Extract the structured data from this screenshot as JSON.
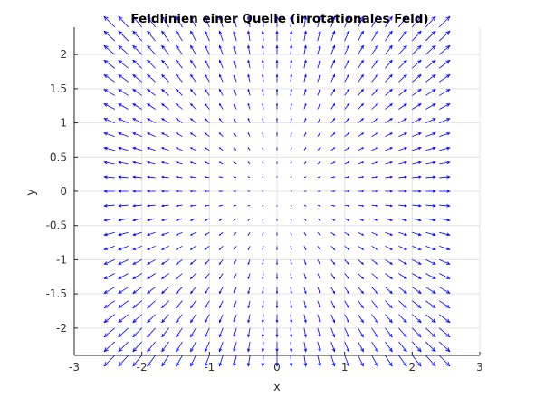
{
  "chart_data": {
    "type": "quiver",
    "title": "Feldlinien einer Quelle (irrotationales Feld)",
    "xlabel": "x",
    "ylabel": "y",
    "xlim": [
      -3,
      3
    ],
    "ylim": [
      -2.4,
      2.4
    ],
    "xticks": [
      -3,
      -2,
      -1,
      0,
      1,
      2,
      3
    ],
    "yticks": [
      -2,
      -1.5,
      -1,
      -0.5,
      0,
      0.5,
      1,
      1.5,
      2
    ],
    "xtick_labels": [
      "-3",
      "-2",
      "-1",
      "0",
      "1",
      "2",
      "3"
    ],
    "ytick_labels": [
      "-2",
      "-1.5",
      "-1",
      "-0.5",
      "0",
      "0.5",
      "1",
      "1.5",
      "2"
    ],
    "grid": true,
    "field": {
      "vector_x": "x",
      "vector_y": "y",
      "grid_x": [
        -2.4,
        2.4
      ],
      "grid_y": [
        -2.4,
        2.4
      ],
      "grid_step": 0.2
    },
    "arrow_color": "#0000ff"
  }
}
